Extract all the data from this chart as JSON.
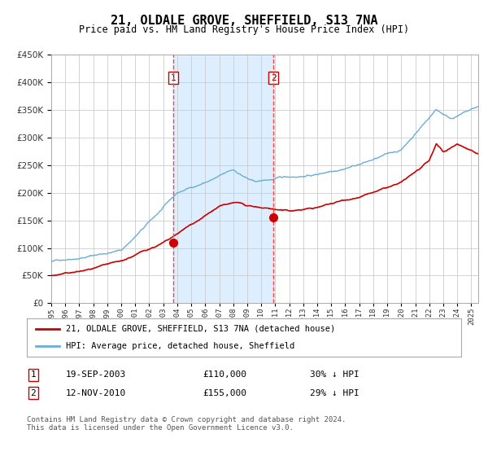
{
  "title": "21, OLDALE GROVE, SHEFFIELD, S13 7NA",
  "subtitle": "Price paid vs. HM Land Registry's House Price Index (HPI)",
  "legend_line1": "21, OLDALE GROVE, SHEFFIELD, S13 7NA (detached house)",
  "legend_line2": "HPI: Average price, detached house, Sheffield",
  "table_row1": [
    "1",
    "19-SEP-2003",
    "£110,000",
    "30% ↓ HPI"
  ],
  "table_row2": [
    "2",
    "12-NOV-2010",
    "£155,000",
    "29% ↓ HPI"
  ],
  "footer": "Contains HM Land Registry data © Crown copyright and database right 2024.\nThis data is licensed under the Open Government Licence v3.0.",
  "sale1_year": 2003.72,
  "sale1_price": 110000,
  "sale2_year": 2010.87,
  "sale2_price": 155000,
  "ylim": [
    0,
    450000
  ],
  "xlim_start": 1995.0,
  "xlim_end": 2025.5,
  "hpi_color": "#6baed6",
  "price_color": "#cc0000",
  "shade_color": "#ddeeff",
  "vline_color": "#ff4444",
  "background_color": "#ffffff",
  "grid_color": "#cccccc"
}
